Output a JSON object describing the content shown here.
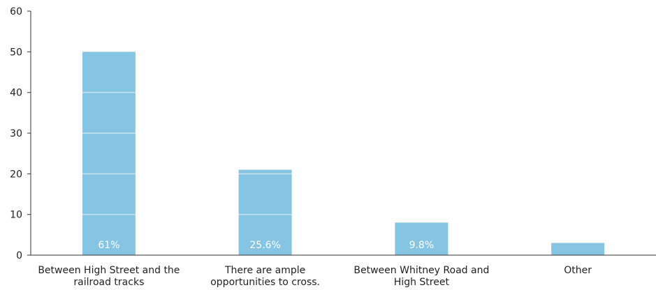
{
  "chart_data": {
    "type": "bar",
    "categories": [
      [
        "Between High Street and the",
        "railroad tracks"
      ],
      [
        "There are ample",
        "opportunities to cross."
      ],
      [
        "Between Whitney Road and",
        "High Street"
      ],
      [
        "Other"
      ]
    ],
    "values": [
      50,
      21,
      8,
      3
    ],
    "data_labels": [
      "61%",
      "25.6%",
      "9.8%",
      ""
    ],
    "yticks": [
      0,
      10,
      20,
      30,
      40,
      50,
      60
    ],
    "ylim": [
      0,
      60
    ],
    "title": "",
    "xlabel": "",
    "ylabel": "",
    "grid": true,
    "bar_color": "#85c4e3"
  }
}
